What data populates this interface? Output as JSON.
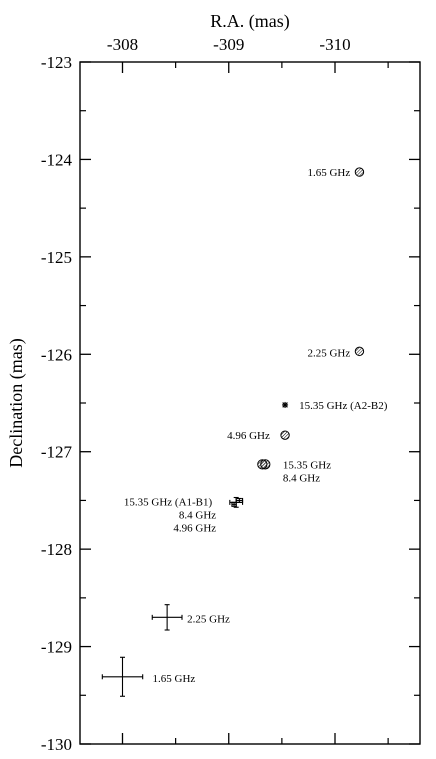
{
  "chart_data": {
    "type": "scatter",
    "title": "",
    "xlabel": "R.A. (mas)",
    "ylabel": "Declination (mas)",
    "xlim": [
      -307.6,
      -310.8
    ],
    "ylim": [
      -130,
      -123
    ],
    "x_ticks": [
      -308,
      -309,
      -310
    ],
    "x_tick_labels": [
      "-308",
      "-309",
      "-310"
    ],
    "y_ticks": [
      -123,
      -124,
      -125,
      -126,
      -127,
      -128,
      -129,
      -130
    ],
    "y_tick_labels": [
      "-123",
      "-124",
      "-125",
      "-126",
      "-127",
      "-128",
      "-129",
      "-130"
    ],
    "x_axis_position": "top",
    "grid": false,
    "legend": "none",
    "series": [
      {
        "marker": "hatched-circle",
        "points": [
          {
            "x": -310.23,
            "y": -124.13,
            "label": "1.65 GHz"
          },
          {
            "x": -310.23,
            "y": -125.97,
            "label": "2.25 GHz"
          },
          {
            "x": -309.53,
            "y": -126.83,
            "label": "4.96 GHz"
          },
          {
            "x": -309.33,
            "y": -127.13,
            "label": "15.35 GHz\n8.4 GHz"
          }
        ]
      },
      {
        "marker": "star",
        "points": [
          {
            "x": -309.53,
            "y": -126.52,
            "label": "15.35 GHz (A2-B2)"
          }
        ]
      },
      {
        "marker": "error-cross",
        "points": [
          {
            "x": -309.07,
            "y": -127.52,
            "xerr": 0.06,
            "yerr": 0.05,
            "label": "15.35 GHz (A1-B1)\n8.4 GHz\n4.96 GHz"
          },
          {
            "x": -309.1,
            "y": -127.5,
            "xerr": 0.03,
            "yerr": 0.02
          },
          {
            "x": -309.05,
            "y": -127.54,
            "xerr": 0.02,
            "yerr": 0.02
          },
          {
            "x": -308.42,
            "y": -128.7,
            "xerr": 0.14,
            "yerr": 0.13,
            "label": "2.25 GHz"
          },
          {
            "x": -308.0,
            "y": -129.31,
            "xerr": 0.19,
            "yerr": 0.2,
            "label": "1.65 GHz"
          }
        ]
      }
    ]
  }
}
